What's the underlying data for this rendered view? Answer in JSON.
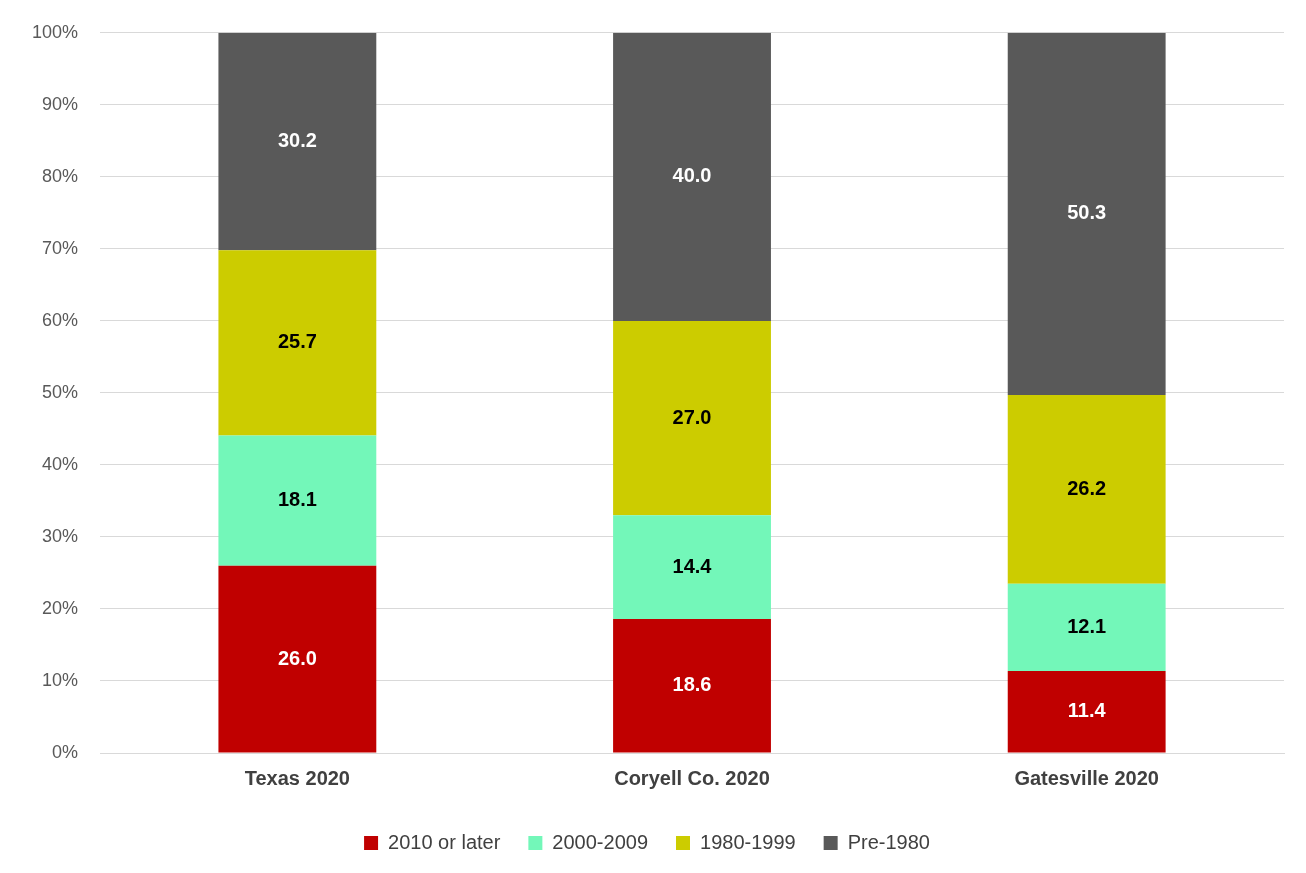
{
  "chart_data": {
    "type": "bar",
    "stacked": true,
    "categories": [
      "Texas 2020",
      "Coryell Co. 2020",
      "Gatesville 2020"
    ],
    "series": [
      {
        "name": "2010 or later",
        "color": "#c00000",
        "values": [
          26.0,
          18.6,
          11.4
        ],
        "value_labels": [
          "26.0",
          "18.6",
          "11.4"
        ]
      },
      {
        "name": "2000-2009",
        "color": "#73f7b9",
        "values": [
          18.1,
          14.4,
          12.1
        ],
        "value_labels": [
          "18.1",
          "14.4",
          "12.1"
        ]
      },
      {
        "name": "1980-1999",
        "color": "#cccc00",
        "values": [
          25.7,
          27.0,
          26.2
        ],
        "value_labels": [
          "25.7",
          "27.0",
          "26.2"
        ]
      },
      {
        "name": "Pre-1980",
        "color": "#595959",
        "values": [
          30.2,
          40.0,
          50.3
        ],
        "value_labels": [
          "30.2",
          "40.0",
          "50.3"
        ]
      }
    ],
    "ylim": [
      0,
      100
    ],
    "yticks": [
      {
        "value": 0,
        "label": "0%"
      },
      {
        "value": 10,
        "label": "10%"
      },
      {
        "value": 20,
        "label": "20%"
      },
      {
        "value": 30,
        "label": "30%"
      },
      {
        "value": 40,
        "label": "40%"
      },
      {
        "value": 50,
        "label": "50%"
      },
      {
        "value": 60,
        "label": "60%"
      },
      {
        "value": 70,
        "label": "70%"
      },
      {
        "value": 80,
        "label": "80%"
      },
      {
        "value": 90,
        "label": "90%"
      },
      {
        "value": 100,
        "label": "100%"
      }
    ],
    "grid": "y",
    "legend": "bottom"
  }
}
